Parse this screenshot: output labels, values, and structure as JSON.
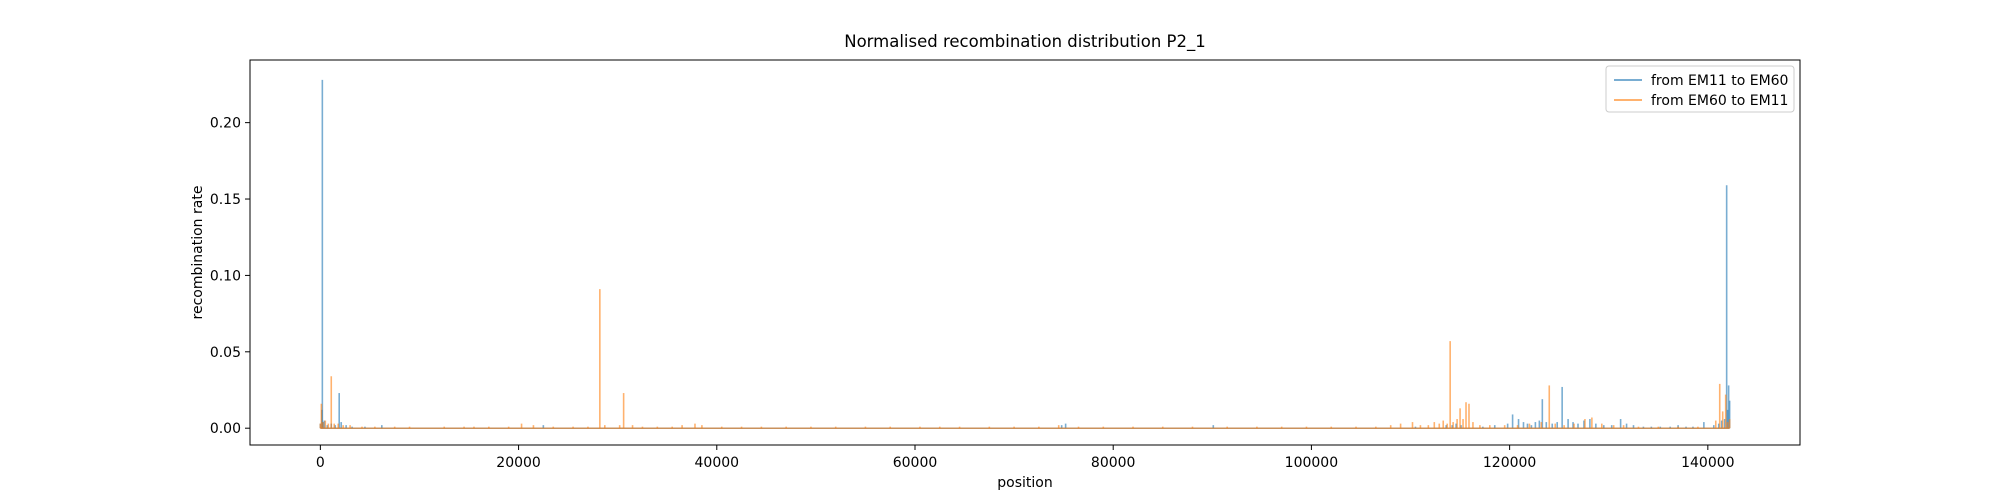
{
  "chart_data": {
    "type": "line",
    "title": "Normalised recombination distribution P2_1",
    "xlabel": "position",
    "ylabel": "recombination rate",
    "xlim": [
      -7100,
      149300
    ],
    "ylim": [
      -0.011,
      0.241
    ],
    "x_ticks": [
      0,
      20000,
      40000,
      60000,
      80000,
      100000,
      120000,
      140000
    ],
    "x_tick_labels": [
      "0",
      "20000",
      "40000",
      "60000",
      "80000",
      "100000",
      "120000",
      "140000"
    ],
    "y_ticks": [
      0.0,
      0.05,
      0.1,
      0.15,
      0.2
    ],
    "y_tick_labels": [
      "0.00",
      "0.05",
      "0.10",
      "0.15",
      "0.20"
    ],
    "grid": false,
    "legend_position": "top-right",
    "series": [
      {
        "name": "from EM11 to EM60",
        "color": "#1f77b4",
        "alpha": 0.6,
        "x_max": 142200,
        "spikes": [
          [
            0,
            0.003
          ],
          [
            150,
            0.012
          ],
          [
            200,
            0.228
          ],
          [
            260,
            0.004
          ],
          [
            400,
            0.005
          ],
          [
            700,
            0.002
          ],
          [
            1100,
            0.003
          ],
          [
            1500,
            0.002
          ],
          [
            1900,
            0.023
          ],
          [
            2100,
            0.004
          ],
          [
            2600,
            0.002
          ],
          [
            3200,
            0.001
          ],
          [
            4500,
            0.001
          ],
          [
            6200,
            0.002
          ],
          [
            22500,
            0.002
          ],
          [
            74800,
            0.002
          ],
          [
            75200,
            0.003
          ],
          [
            90100,
            0.002
          ],
          [
            110500,
            0.001
          ],
          [
            113600,
            0.002
          ],
          [
            114200,
            0.002
          ],
          [
            114600,
            0.003
          ],
          [
            115100,
            0.002
          ],
          [
            117300,
            0.001
          ],
          [
            118500,
            0.002
          ],
          [
            119800,
            0.003
          ],
          [
            120300,
            0.009
          ],
          [
            120900,
            0.006
          ],
          [
            121400,
            0.004
          ],
          [
            121800,
            0.003
          ],
          [
            122200,
            0.002
          ],
          [
            122600,
            0.004
          ],
          [
            123000,
            0.005
          ],
          [
            123300,
            0.019
          ],
          [
            123700,
            0.004
          ],
          [
            124300,
            0.003
          ],
          [
            124800,
            0.004
          ],
          [
            125300,
            0.027
          ],
          [
            125900,
            0.006
          ],
          [
            126400,
            0.004
          ],
          [
            126900,
            0.003
          ],
          [
            127500,
            0.005
          ],
          [
            128100,
            0.006
          ],
          [
            128700,
            0.003
          ],
          [
            129500,
            0.002
          ],
          [
            130300,
            0.002
          ],
          [
            131200,
            0.006
          ],
          [
            131800,
            0.003
          ],
          [
            132500,
            0.002
          ],
          [
            133500,
            0.001
          ],
          [
            134300,
            0.001
          ],
          [
            135200,
            0.001
          ],
          [
            136200,
            0.001
          ],
          [
            137000,
            0.002
          ],
          [
            137800,
            0.001
          ],
          [
            138500,
            0.001
          ],
          [
            139600,
            0.004
          ],
          [
            140600,
            0.002
          ],
          [
            141100,
            0.003
          ],
          [
            141400,
            0.005
          ],
          [
            141700,
            0.006
          ],
          [
            141900,
            0.159
          ],
          [
            142000,
            0.012
          ],
          [
            142100,
            0.028
          ],
          [
            142200,
            0.018
          ]
        ]
      },
      {
        "name": "from EM60 to EM11",
        "color": "#ff7f0e",
        "alpha": 0.6,
        "x_max": 142200,
        "spikes": [
          [
            0,
            0.003
          ],
          [
            100,
            0.016
          ],
          [
            250,
            0.004
          ],
          [
            500,
            0.005
          ],
          [
            800,
            0.003
          ],
          [
            1100,
            0.034
          ],
          [
            1400,
            0.003
          ],
          [
            1800,
            0.003
          ],
          [
            2300,
            0.002
          ],
          [
            3000,
            0.002
          ],
          [
            4200,
            0.001
          ],
          [
            5500,
            0.001
          ],
          [
            7500,
            0.001
          ],
          [
            9000,
            0.001
          ],
          [
            12500,
            0.001
          ],
          [
            14500,
            0.001
          ],
          [
            15500,
            0.001
          ],
          [
            17000,
            0.001
          ],
          [
            19000,
            0.001
          ],
          [
            20300,
            0.003
          ],
          [
            21500,
            0.002
          ],
          [
            23500,
            0.001
          ],
          [
            25500,
            0.001
          ],
          [
            27000,
            0.001
          ],
          [
            28200,
            0.091
          ],
          [
            28700,
            0.002
          ],
          [
            30200,
            0.002
          ],
          [
            30600,
            0.023
          ],
          [
            31500,
            0.002
          ],
          [
            32500,
            0.001
          ],
          [
            34000,
            0.001
          ],
          [
            35500,
            0.001
          ],
          [
            36500,
            0.002
          ],
          [
            37800,
            0.003
          ],
          [
            38500,
            0.002
          ],
          [
            40500,
            0.001
          ],
          [
            42500,
            0.001
          ],
          [
            44500,
            0.001
          ],
          [
            47000,
            0.001
          ],
          [
            49500,
            0.001
          ],
          [
            52000,
            0.001
          ],
          [
            55000,
            0.001
          ],
          [
            57500,
            0.001
          ],
          [
            60500,
            0.001
          ],
          [
            62500,
            0.001
          ],
          [
            64500,
            0.001
          ],
          [
            67500,
            0.001
          ],
          [
            70000,
            0.001
          ],
          [
            72500,
            0.001
          ],
          [
            74500,
            0.002
          ],
          [
            76500,
            0.001
          ],
          [
            79000,
            0.001
          ],
          [
            82000,
            0.001
          ],
          [
            85000,
            0.001
          ],
          [
            88000,
            0.001
          ],
          [
            91500,
            0.001
          ],
          [
            94500,
            0.001
          ],
          [
            97000,
            0.001
          ],
          [
            99500,
            0.001
          ],
          [
            102000,
            0.001
          ],
          [
            104500,
            0.001
          ],
          [
            106500,
            0.001
          ],
          [
            108000,
            0.002
          ],
          [
            109000,
            0.003
          ],
          [
            110200,
            0.004
          ],
          [
            111000,
            0.002
          ],
          [
            111800,
            0.002
          ],
          [
            112400,
            0.004
          ],
          [
            112900,
            0.003
          ],
          [
            113300,
            0.005
          ],
          [
            113700,
            0.003
          ],
          [
            114000,
            0.057
          ],
          [
            114300,
            0.004
          ],
          [
            114700,
            0.006
          ],
          [
            115000,
            0.013
          ],
          [
            115300,
            0.006
          ],
          [
            115600,
            0.017
          ],
          [
            115900,
            0.016
          ],
          [
            116300,
            0.004
          ],
          [
            117000,
            0.002
          ],
          [
            118000,
            0.002
          ],
          [
            119500,
            0.002
          ],
          [
            120800,
            0.002
          ],
          [
            122000,
            0.003
          ],
          [
            123200,
            0.004
          ],
          [
            124000,
            0.028
          ],
          [
            124600,
            0.003
          ],
          [
            125500,
            0.002
          ],
          [
            126500,
            0.003
          ],
          [
            127600,
            0.006
          ],
          [
            128300,
            0.007
          ],
          [
            129300,
            0.003
          ],
          [
            130500,
            0.002
          ],
          [
            131500,
            0.002
          ],
          [
            133000,
            0.001
          ],
          [
            135000,
            0.001
          ],
          [
            137000,
            0.001
          ],
          [
            139000,
            0.001
          ],
          [
            140800,
            0.005
          ],
          [
            141200,
            0.029
          ],
          [
            141500,
            0.011
          ],
          [
            141800,
            0.022
          ],
          [
            142000,
            0.004
          ],
          [
            142200,
            0.006
          ]
        ]
      }
    ]
  }
}
